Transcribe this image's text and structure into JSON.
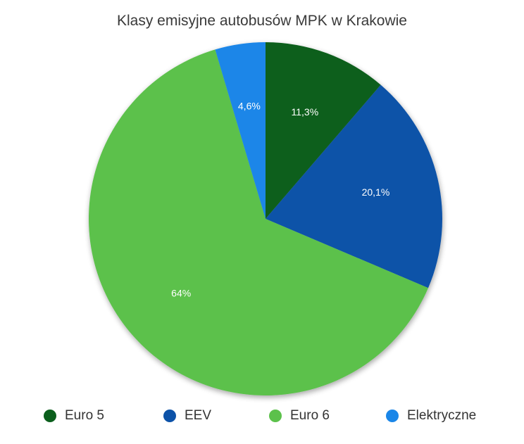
{
  "chart_data": {
    "type": "pie",
    "title": "Klasy emisyjne autobusów MPK w Krakowie",
    "slices": [
      {
        "label": "Euro 5",
        "value": 11.3,
        "display": "11,3%",
        "color": "#0b5e1c"
      },
      {
        "label": "EEV",
        "value": 20.1,
        "display": "20,1%",
        "color": "#0c52a8"
      },
      {
        "label": "Euro 6",
        "value": 64.0,
        "display": "64%",
        "color": "#5cc14b"
      },
      {
        "label": "Elektryczne",
        "value": 4.6,
        "display": "4,6%",
        "color": "#1a86e8"
      }
    ],
    "legend_position": "bottom"
  }
}
